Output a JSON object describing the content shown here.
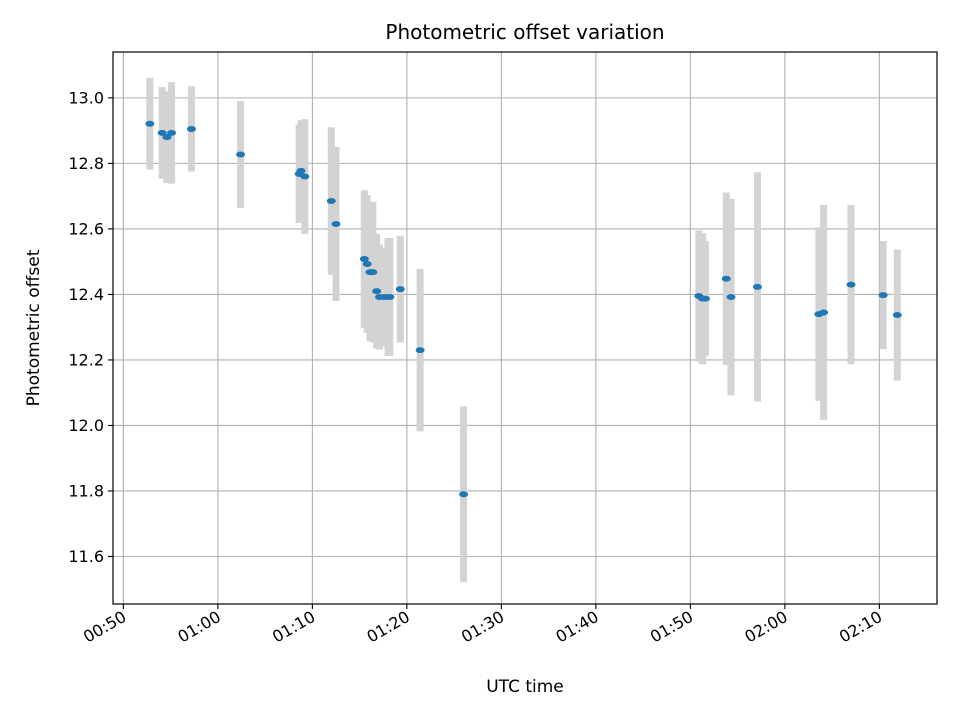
{
  "chart_data": {
    "type": "scatter",
    "title": "Photometric offset variation",
    "xlabel": "UTC time",
    "ylabel": "Photometric offset",
    "xlim": [
      "00:48.9",
      "02:16.1"
    ],
    "ylim": [
      11.455,
      13.14
    ],
    "x_ticks": [
      "00:50",
      "01:00",
      "01:10",
      "01:20",
      "01:30",
      "01:40",
      "01:50",
      "02:00",
      "02:10"
    ],
    "y_ticks": [
      "11.6",
      "11.8",
      "12.0",
      "12.2",
      "12.4",
      "12.6",
      "12.8",
      "13.0"
    ],
    "grid": true,
    "colors": {
      "points": "#1f77b4",
      "errorbars": "#d3d3d3",
      "grid": "#b0b0b0"
    },
    "points": [
      {
        "x": "00:52.8",
        "y": 12.921,
        "err": 0.14
      },
      {
        "x": "00:54.1",
        "y": 12.893,
        "err": 0.14
      },
      {
        "x": "00:54.6",
        "y": 12.88,
        "err": 0.14
      },
      {
        "x": "00:55.1",
        "y": 12.893,
        "err": 0.155
      },
      {
        "x": "00:57.2",
        "y": 12.905,
        "err": 0.13
      },
      {
        "x": "01:02.4",
        "y": 12.827,
        "err": 0.163
      },
      {
        "x": "01:08.6",
        "y": 12.768,
        "err": 0.15
      },
      {
        "x": "01:08.8",
        "y": 12.777,
        "err": 0.155
      },
      {
        "x": "01:09.2",
        "y": 12.76,
        "err": 0.175
      },
      {
        "x": "01:12.0",
        "y": 12.685,
        "err": 0.225
      },
      {
        "x": "01:12.5",
        "y": 12.615,
        "err": 0.235
      },
      {
        "x": "01:15.5",
        "y": 12.508,
        "err": 0.21
      },
      {
        "x": "01:15.8",
        "y": 12.493,
        "err": 0.21
      },
      {
        "x": "01:16.1",
        "y": 12.468,
        "err": 0.21
      },
      {
        "x": "01:16.4",
        "y": 12.468,
        "err": 0.215
      },
      {
        "x": "01:16.8",
        "y": 12.41,
        "err": 0.175
      },
      {
        "x": "01:17.1",
        "y": 12.392,
        "err": 0.16
      },
      {
        "x": "01:17.6",
        "y": 12.392,
        "err": 0.15
      },
      {
        "x": "01:18.0",
        "y": 12.392,
        "err": 0.18
      },
      {
        "x": "01:18.2",
        "y": 12.392,
        "err": 0.18
      },
      {
        "x": "01:19.3",
        "y": 12.416,
        "err": 0.163
      },
      {
        "x": "01:21.4",
        "y": 12.23,
        "err": 0.248
      },
      {
        "x": "01:26.0",
        "y": 11.79,
        "err": 0.268
      },
      {
        "x": "01:50.9",
        "y": 12.395,
        "err": 0.2
      },
      {
        "x": "01:51.3",
        "y": 12.387,
        "err": 0.2
      },
      {
        "x": "01:51.6",
        "y": 12.387,
        "err": 0.175
      },
      {
        "x": "01:53.8",
        "y": 12.448,
        "err": 0.263
      },
      {
        "x": "01:54.3",
        "y": 12.392,
        "err": 0.3
      },
      {
        "x": "01:57.1",
        "y": 12.423,
        "err": 0.35
      },
      {
        "x": "02:03.6",
        "y": 12.34,
        "err": 0.265
      },
      {
        "x": "02:04.1",
        "y": 12.345,
        "err": 0.328
      },
      {
        "x": "02:07.0",
        "y": 12.43,
        "err": 0.243
      },
      {
        "x": "02:10.4",
        "y": 12.398,
        "err": 0.165
      },
      {
        "x": "02:11.9",
        "y": 12.337,
        "err": 0.2
      }
    ]
  }
}
